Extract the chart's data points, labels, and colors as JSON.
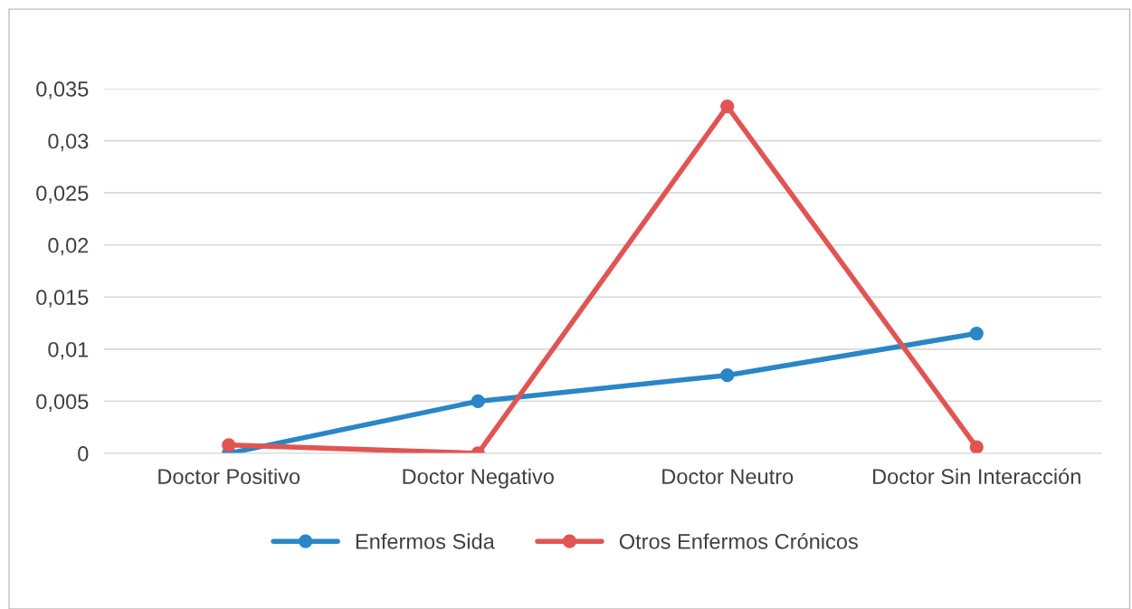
{
  "chart_data": {
    "type": "line",
    "categories": [
      "Doctor Positivo",
      "Doctor Negativo",
      "Doctor Neutro",
      "Doctor Sin Interacción"
    ],
    "series": [
      {
        "name": "Enfermos Sida",
        "color": "#2a86c6",
        "values": [
          0.0,
          0.005,
          0.0075,
          0.0115
        ]
      },
      {
        "name": "Otros Enfermos Crónicos",
        "color": "#e05552",
        "values": [
          0.0008,
          0.0,
          0.0333,
          0.0006
        ]
      }
    ],
    "ylim": [
      0,
      0.035
    ],
    "yticks": [
      {
        "value": 0,
        "label": "0"
      },
      {
        "value": 0.005,
        "label": "0,005"
      },
      {
        "value": 0.01,
        "label": "0,01"
      },
      {
        "value": 0.015,
        "label": "0,015"
      },
      {
        "value": 0.02,
        "label": "0,02"
      },
      {
        "value": 0.025,
        "label": "0,025"
      },
      {
        "value": 0.03,
        "label": "0,03"
      },
      {
        "value": 0.035,
        "label": "0,035"
      }
    ],
    "grid": "y",
    "legend": "bottom",
    "marker": "circle",
    "line_style": "solid"
  }
}
